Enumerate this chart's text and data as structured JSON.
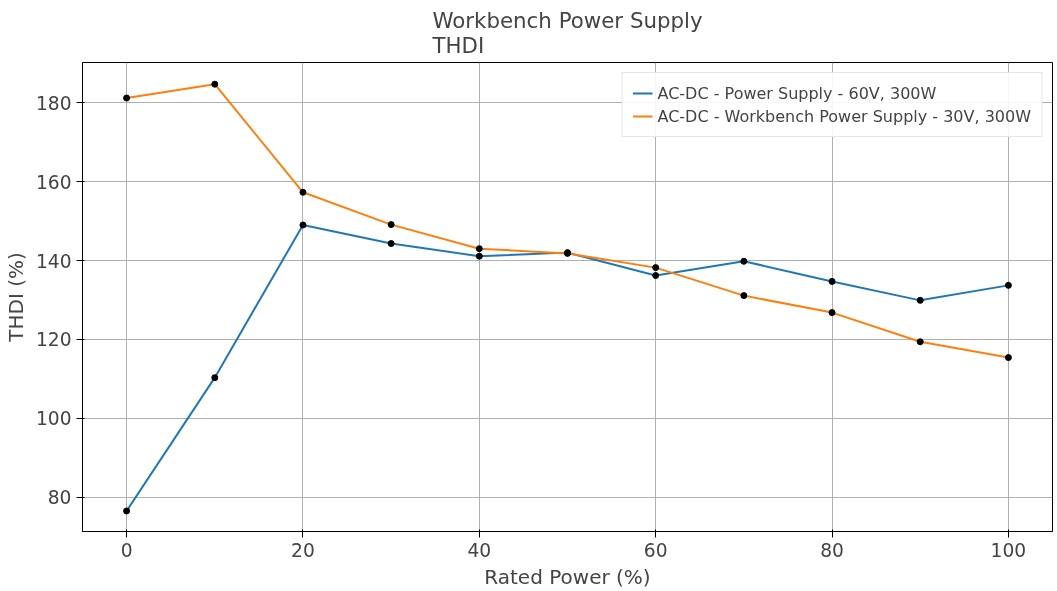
{
  "chart_data": {
    "type": "line",
    "title": "Workbench Power Supply\nTHDI",
    "xlabel": "Rated Power (%)",
    "ylabel": "THDI (%)",
    "x": [
      0,
      10,
      20,
      30,
      40,
      50,
      60,
      70,
      80,
      90,
      100
    ],
    "series": [
      {
        "name": "AC-DC - Power Supply - 60V, 300W",
        "color": "#1f77b4",
        "values": [
          76.5,
          110.3,
          149,
          144.3,
          141.1,
          142,
          136.2,
          139.8,
          134.7,
          129.9,
          133.7
        ]
      },
      {
        "name": "AC-DC - Workbench Power Supply - 30V, 300W",
        "color": "#ff7f0e",
        "values": [
          181.2,
          184.7,
          157.3,
          149.1,
          143,
          141.8,
          138.2,
          131.1,
          126.8,
          119.4,
          115.4
        ]
      }
    ],
    "xlim": [
      -5,
      105
    ],
    "ylim": [
      71.3,
      190.2
    ],
    "xticks": [
      0,
      20,
      40,
      60,
      80,
      100
    ],
    "yticks": [
      80,
      100,
      120,
      140,
      160,
      180
    ],
    "grid": true,
    "legend": "top right",
    "marker": "circle",
    "line_style": "solid"
  }
}
